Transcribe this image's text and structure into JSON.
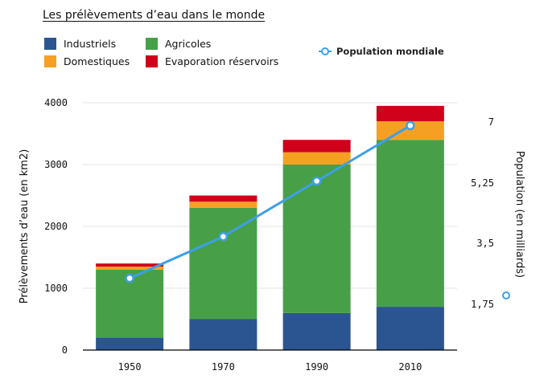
{
  "title": "Les prélèvements d’eau dans le monde",
  "legend": [
    {
      "label": "Industriels",
      "color": "#2a5591"
    },
    {
      "label": "Agricoles",
      "color": "#47a047"
    },
    {
      "label": "Domestiques",
      "color": "#f5a023"
    },
    {
      "label": "Evaporation réservoirs",
      "color": "#d0021b"
    }
  ],
  "line_legend": {
    "label": "Population mondiale",
    "color": "#3d9fe8"
  },
  "chart_data": {
    "type": "bar",
    "stacked": true,
    "categories": [
      "1950",
      "1970",
      "1990",
      "2010"
    ],
    "series": [
      {
        "name": "Industriels",
        "values": [
          200,
          500,
          600,
          700
        ]
      },
      {
        "name": "Agricoles",
        "values": [
          1100,
          1800,
          2400,
          2700
        ]
      },
      {
        "name": "Domestiques",
        "values": [
          50,
          100,
          200,
          300
        ]
      },
      {
        "name": "Evaporation réservoirs",
        "values": [
          50,
          100,
          200,
          250
        ]
      }
    ],
    "line_series": {
      "name": "Population mondiale",
      "values": [
        2.5,
        3.7,
        5.3,
        6.9
      ]
    },
    "ylabel": "Prélèvements d’eau (en km2)",
    "ylim": [
      0,
      4000
    ],
    "yticks": [
      0,
      1000,
      2000,
      3000,
      4000
    ],
    "y2label": "Population (en milliards)",
    "y2ticks": [
      "1,75",
      "3,5",
      "5,25",
      "7"
    ],
    "grid": true
  }
}
